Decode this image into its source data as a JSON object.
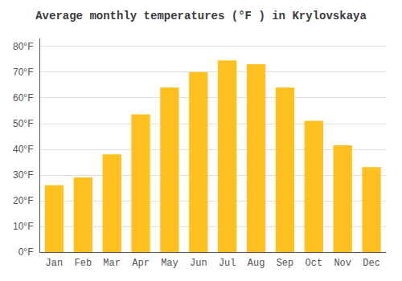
{
  "chart_data": {
    "type": "bar",
    "title": "Average monthly temperatures (°F ) in Krylovskaya",
    "categories": [
      "Jan",
      "Feb",
      "Mar",
      "Apr",
      "May",
      "Jun",
      "Jul",
      "Aug",
      "Sep",
      "Oct",
      "Nov",
      "Dec"
    ],
    "values": [
      26.0,
      29.0,
      38.0,
      53.5,
      64.0,
      70.0,
      74.5,
      73.0,
      64.0,
      51.0,
      41.5,
      33.0
    ],
    "color": "#FFC020",
    "ylim": [
      0,
      83
    ],
    "yticks": [
      {
        "value": 0,
        "label": "0°F"
      },
      {
        "value": 10,
        "label": "10°F"
      },
      {
        "value": 20,
        "label": "20°F"
      },
      {
        "value": 30,
        "label": "30°F"
      },
      {
        "value": 40,
        "label": "40°F"
      },
      {
        "value": 50,
        "label": "50°F"
      },
      {
        "value": 60,
        "label": "60°F"
      },
      {
        "value": 70,
        "label": "70°F"
      },
      {
        "value": 80,
        "label": "80°F"
      }
    ],
    "grid": true
  }
}
